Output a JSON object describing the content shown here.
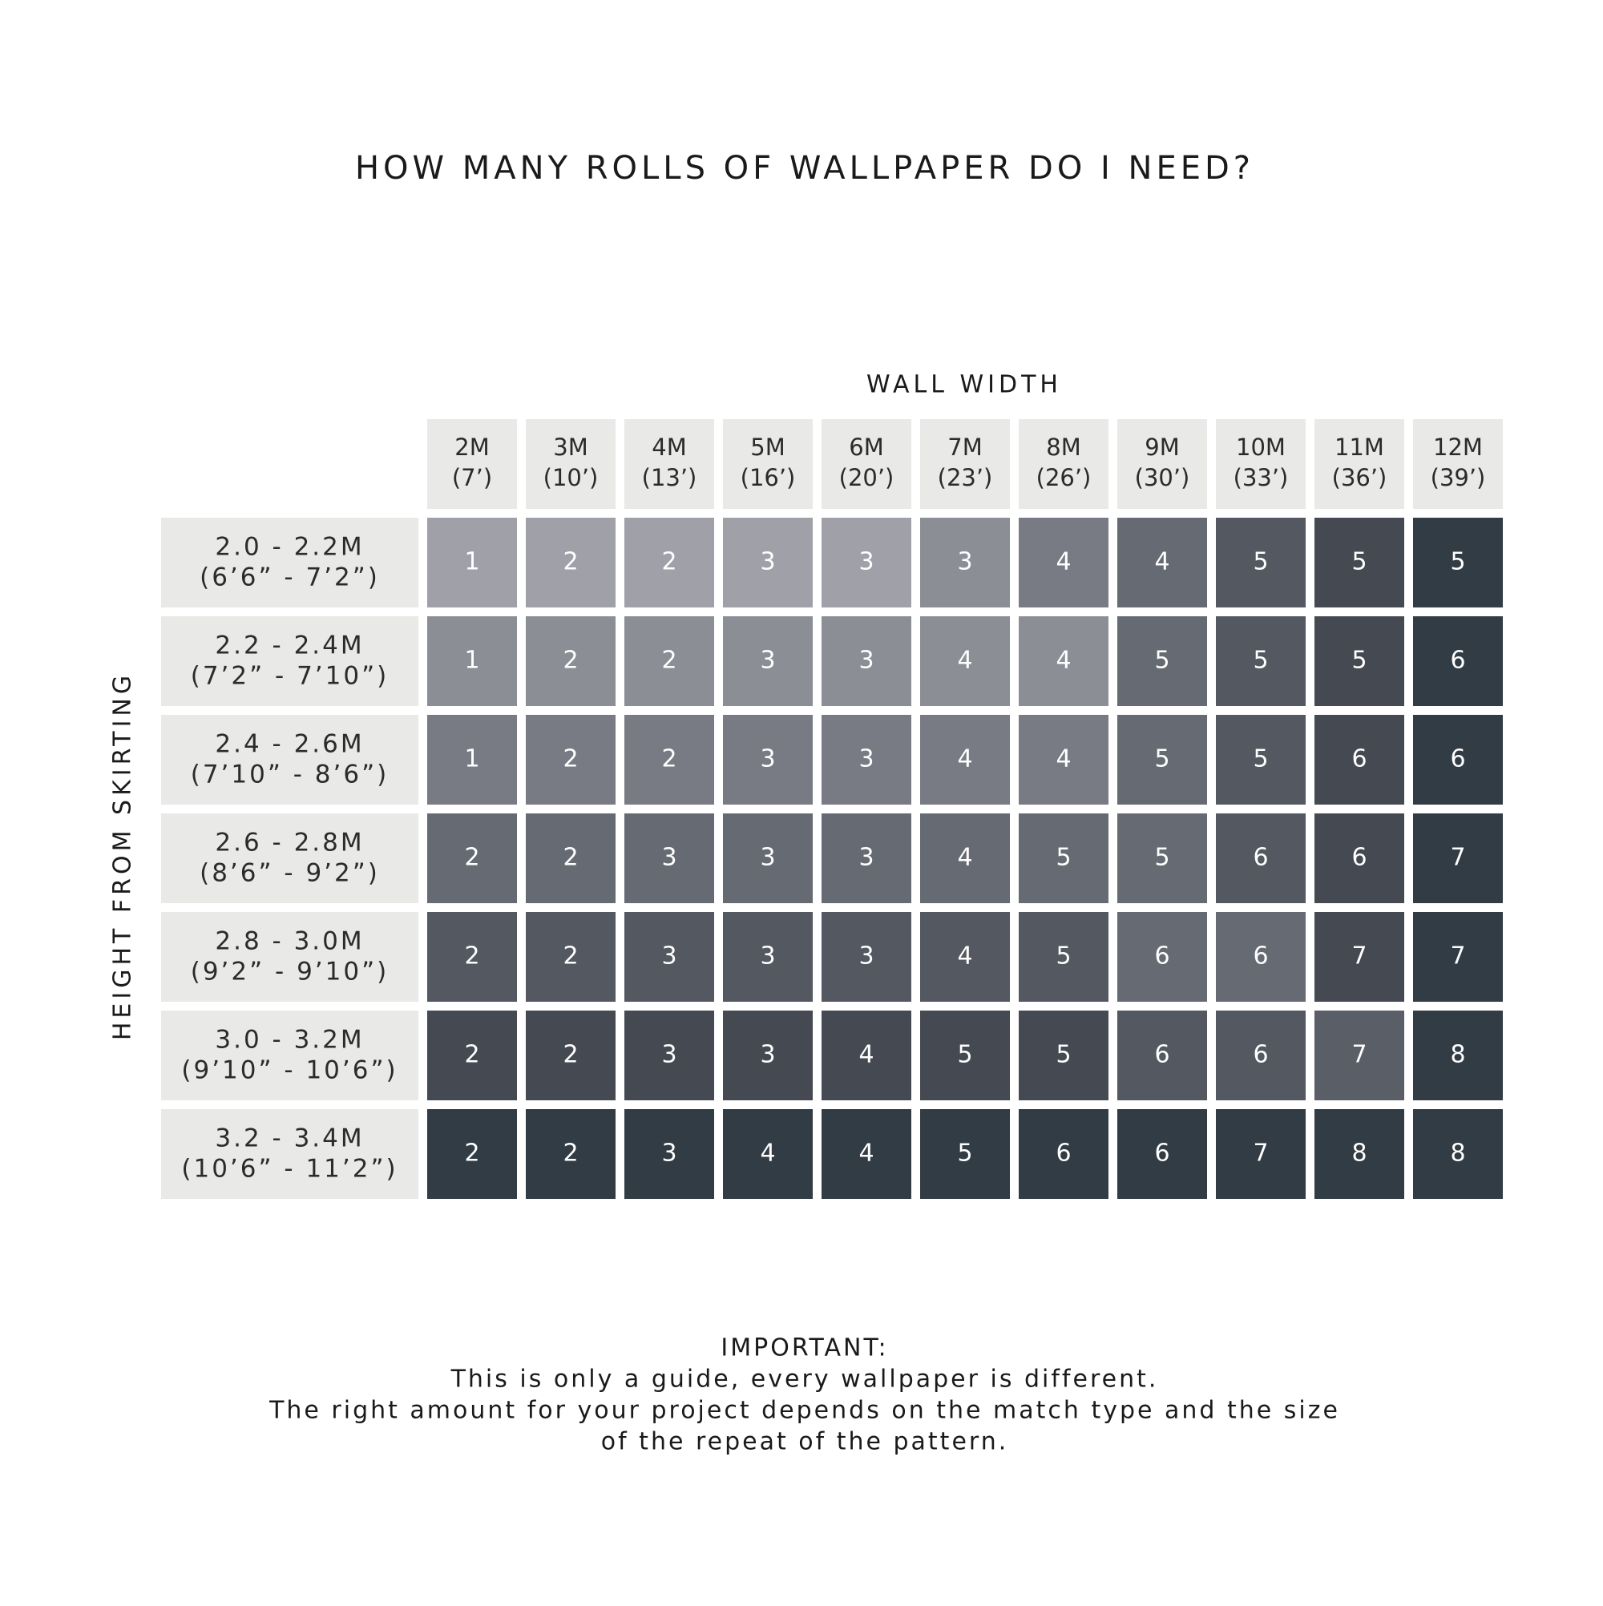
{
  "title": "HOW MANY ROLLS OF WALLPAPER DO I NEED?",
  "column_header": "WALL WIDTH",
  "row_header": "HEIGHT FROM SKIRTING",
  "header_color": "#e9e9e8",
  "columns": [
    [
      "2M",
      "(7’)"
    ],
    [
      "3M",
      "(10’)"
    ],
    [
      "4M",
      "(13’)"
    ],
    [
      "5M",
      "(16’)"
    ],
    [
      "6M",
      "(20’)"
    ],
    [
      "7M",
      "(23’)"
    ],
    [
      "8M",
      "(26’)"
    ],
    [
      "9M",
      "(30’)"
    ],
    [
      "10M",
      "(33’)"
    ],
    [
      "11M",
      "(36’)"
    ],
    [
      "12M",
      "(39’)"
    ]
  ],
  "rows": [
    {
      "label": [
        "2.0 - 2.2M",
        "(6’6” - 7’2”)"
      ],
      "values": [
        1,
        2,
        2,
        3,
        3,
        3,
        4,
        4,
        5,
        5,
        5
      ],
      "colors": [
        "#a0a1a8",
        "#a0a1a8",
        "#a0a1a8",
        "#a0a1a8",
        "#a0a1a8",
        "#8c8e96",
        "#787b84",
        "#666a73",
        "#535861",
        "#444952",
        "#323c44"
      ]
    },
    {
      "label": [
        "2.2 - 2.4M",
        "(7’2” - 7’10”)"
      ],
      "values": [
        1,
        2,
        2,
        3,
        3,
        4,
        4,
        5,
        5,
        5,
        6
      ],
      "colors": [
        "#8c8e96",
        "#8c8e96",
        "#8c8e96",
        "#8c8e96",
        "#8c8e96",
        "#8c8e96",
        "#8c8e96",
        "#666a73",
        "#535861",
        "#444952",
        "#323c44"
      ]
    },
    {
      "label": [
        "2.4 - 2.6M",
        "(7’10” - 8’6”)"
      ],
      "values": [
        1,
        2,
        2,
        3,
        3,
        4,
        4,
        5,
        5,
        6,
        6
      ],
      "colors": [
        "#787b84",
        "#787b84",
        "#787b84",
        "#787b84",
        "#787b84",
        "#787b84",
        "#787b84",
        "#666a73",
        "#535861",
        "#444952",
        "#323c44"
      ]
    },
    {
      "label": [
        "2.6 - 2.8M",
        "(8’6” - 9’2”)"
      ],
      "values": [
        2,
        2,
        3,
        3,
        3,
        4,
        5,
        5,
        6,
        6,
        7
      ],
      "colors": [
        "#666a73",
        "#666a73",
        "#666a73",
        "#666a73",
        "#666a73",
        "#666a73",
        "#666a73",
        "#666a73",
        "#535861",
        "#444952",
        "#323c44"
      ]
    },
    {
      "label": [
        "2.8 - 3.0M",
        "(9’2” - 9’10”)"
      ],
      "values": [
        2,
        2,
        3,
        3,
        3,
        4,
        5,
        6,
        6,
        7,
        7
      ],
      "colors": [
        "#535861",
        "#535861",
        "#535861",
        "#535861",
        "#535861",
        "#535861",
        "#535861",
        "#666a73",
        "#666a73",
        "#444952",
        "#323c44"
      ]
    },
    {
      "label": [
        "3.0 - 3.2M",
        "(9’10” - 10’6”)"
      ],
      "values": [
        2,
        2,
        3,
        3,
        4,
        5,
        5,
        6,
        6,
        7,
        8
      ],
      "colors": [
        "#444952",
        "#444952",
        "#444952",
        "#444952",
        "#444952",
        "#444952",
        "#444952",
        "#535861",
        "#535861",
        "#5a5e66",
        "#323c44"
      ]
    },
    {
      "label": [
        "3.2 - 3.4M",
        "(10’6” - 11’2”)"
      ],
      "values": [
        2,
        2,
        3,
        4,
        4,
        5,
        6,
        6,
        7,
        8,
        8
      ],
      "colors": [
        "#323c44",
        "#323c44",
        "#323c44",
        "#323c44",
        "#323c44",
        "#323c44",
        "#323c44",
        "#323c44",
        "#323c44",
        "#323c44",
        "#323c44"
      ]
    }
  ],
  "note": [
    "IMPORTANT:",
    "This is only a guide, every wallpaper is different.",
    "The right amount for your project depends on the match type and the size",
    "of the repeat of the pattern."
  ]
}
